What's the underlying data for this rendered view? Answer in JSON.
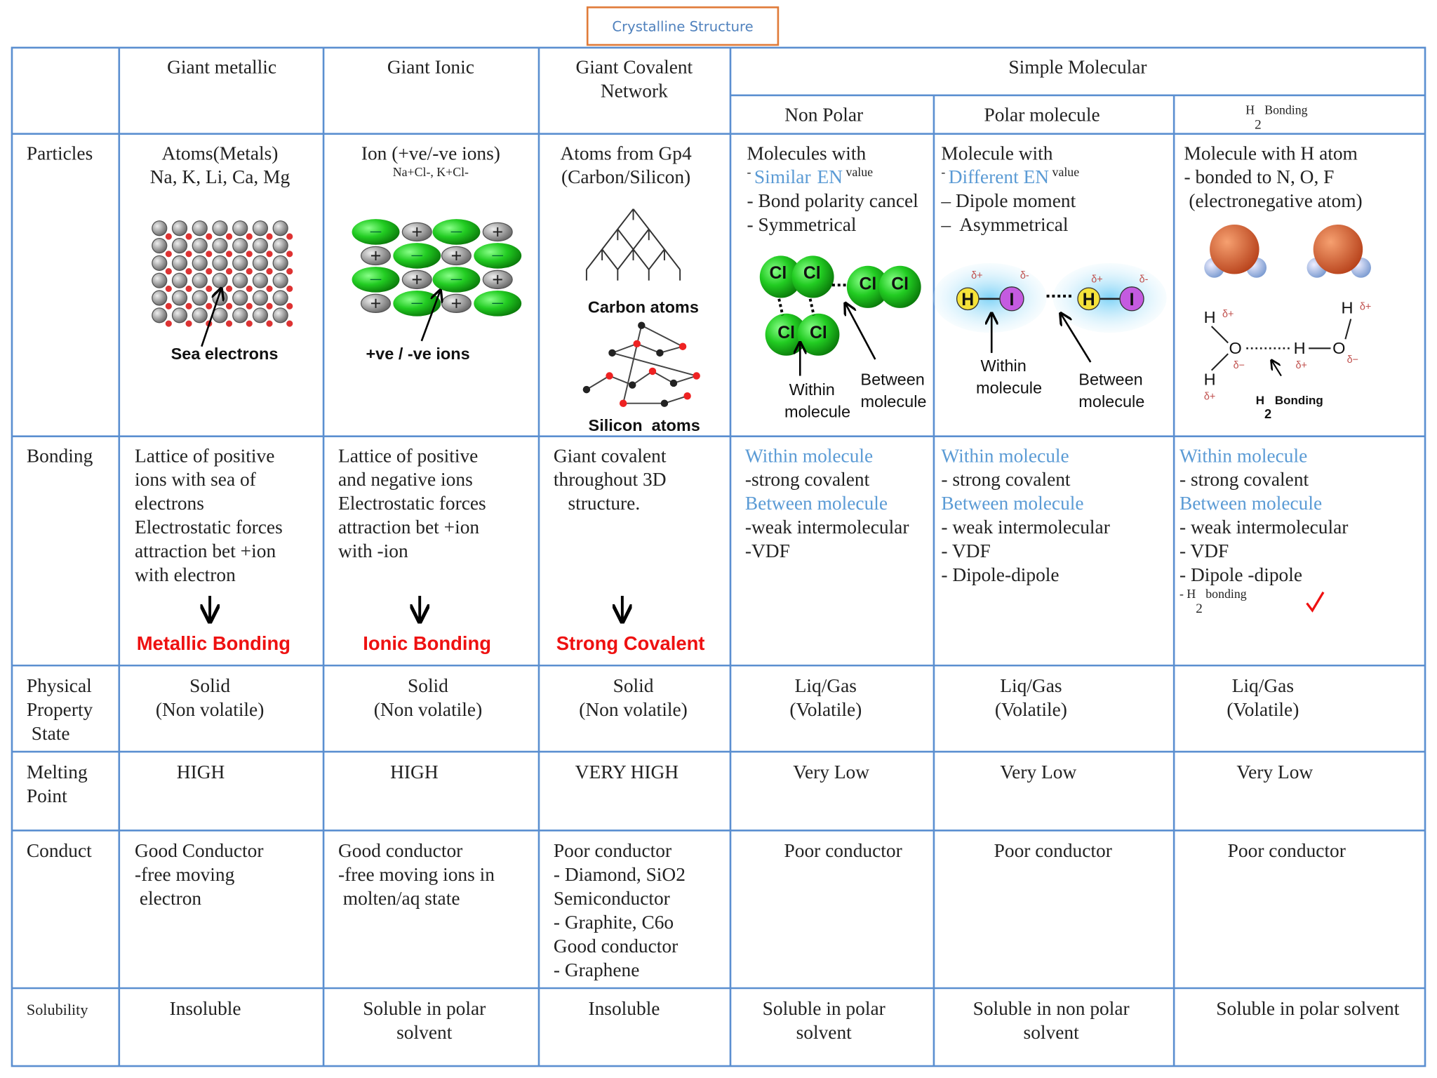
{
  "title": "Crystalline Structure",
  "header": {
    "columns": [
      [
        "Giant metallic"
      ],
      [
        "Giant Ionic"
      ],
      [
        "Giant Covalent",
        "Network"
      ]
    ],
    "group": "Simple Molecular",
    "subcolumns": [
      "Non Polar",
      "Polar molecule",
      [
        "H",
        {
          "text": "2",
          "sub": true
        },
        " Bonding"
      ]
    ]
  },
  "table": {
    "result_color": "#ee1111",
    "rows": [
      {
        "label": [
          "Particles"
        ],
        "cells": [
          {
            "lines": [
              "Atoms(Metals)",
              "Na, K, Li, Ca, Mg"
            ],
            "labels": [
              "Sea electrons"
            ]
          },
          {
            "lines": [
              "Ion (+ve/-ve ions)",
              [
                "Na",
                {
                  "text": "+",
                  "sup": true
                },
                "Cl",
                {
                  "text": "-",
                  "sup": true
                },
                ", K",
                {
                  "text": "+",
                  "sup": true
                },
                "Cl",
                {
                  "text": "-",
                  "sup": true
                }
              ]
            ],
            "labels": [
              "+ve / -ve ions"
            ]
          },
          {
            "lines": [
              "Atoms from Gp4",
              "(Carbon/Silicon)"
            ],
            "labels": [
              "Carbon atoms",
              "Silicon  atoms"
            ]
          },
          {
            "lines": [
              "Molecules with",
              [
                "- ",
                {
                  "text": "Similar",
                  "color": "#5b9bd5"
                },
                "  ",
                {
                  "text": "EN",
                  "color": "#5b9bd5"
                },
                " value"
              ],
              "- Bond polarity cancel",
              "- Symmetrical"
            ],
            "labels": [
              "Cl",
              "Cl",
              "Cl",
              "Cl",
              "Cl",
              "Cl",
              "Within",
              "molecule",
              "Between",
              "molecule"
            ]
          },
          {
            "lines": [
              "Molecule with",
              [
                "- ",
                {
                  "text": "Different EN",
                  "color": "#5b9bd5"
                },
                " value"
              ],
              "– Dipole moment",
              "–  Asymmetrical"
            ],
            "labels": [
              "H",
              "I",
              "H",
              "I",
              "δ+",
              "δ-",
              "δ+",
              "δ-",
              "Within",
              "molecule",
              "Between",
              "molecule"
            ]
          },
          {
            "lines": [
              "Molecule with H atom",
              "- bonded to N, O, F",
              " (electronegative atom)"
            ],
            "labels": [
              "H",
              "δ+",
              "O",
              "δ−",
              "H",
              "δ+",
              "H",
              "δ+",
              "O",
              "δ−",
              "H",
              "δ+",
              [
                "H",
                {
                  "text": "2",
                  "sub": true
                },
                " Bonding"
              ]
            ]
          }
        ]
      },
      {
        "label": [
          "Bonding"
        ],
        "cells": [
          {
            "lines": [
              "Lattice of positive",
              "ions with sea of",
              "electrons",
              "Electrostatic forces",
              "attraction bet +ion",
              "with electron"
            ],
            "result": "Metallic Bonding"
          },
          {
            "lines": [
              "Lattice of positive",
              "and negative ions",
              "Electrostatic forces",
              "attraction bet +ion",
              "with -ion"
            ],
            "result": "Ionic Bonding"
          },
          {
            "lines": [
              "Giant covalent",
              "throughout 3D",
              "   structure."
            ],
            "result": "Strong Covalent"
          },
          {
            "lines": [
              [
                {
                  "text": "Within molecule",
                  "color": "#5b9bd5"
                }
              ],
              "-strong covalent",
              [
                {
                  "text": "Between molecule",
                  "color": "#5b9bd5"
                }
              ],
              "-weak intermolecular",
              "-VDF"
            ]
          },
          {
            "lines": [
              [
                {
                  "text": "Within molecule",
                  "color": "#5b9bd5"
                }
              ],
              "- strong covalent",
              [
                {
                  "text": "Between molecule",
                  "color": "#5b9bd5"
                }
              ],
              "- weak intermolecular",
              "- VDF",
              "- Dipole-dipole"
            ]
          },
          {
            "lines": [
              [
                {
                  "text": "Within molecule",
                  "color": "#5b9bd5"
                }
              ],
              "- strong covalent",
              [
                {
                  "text": "Between molecule",
                  "color": "#5b9bd5"
                }
              ],
              "- weak intermolecular",
              "- VDF",
              "- Dipole -dipole",
              [
                "- H",
                {
                  "text": "2",
                  "sub": true
                },
                " bonding"
              ]
            ]
          }
        ]
      },
      {
        "label": [
          "Physical",
          "Property",
          " State"
        ],
        "cells": [
          {
            "lines": [
              "Solid",
              "(Non volatile)"
            ]
          },
          {
            "lines": [
              "Solid",
              "(Non volatile)"
            ]
          },
          {
            "lines": [
              "Solid",
              "(Non volatile)"
            ]
          },
          {
            "lines": [
              "Liq/Gas",
              "(Volatile)"
            ]
          },
          {
            "lines": [
              "Liq/Gas",
              "(Volatile)"
            ]
          },
          {
            "lines": [
              "Liq/Gas",
              "(Volatile)"
            ]
          }
        ]
      },
      {
        "label": [
          "Melting",
          "Point"
        ],
        "cells": [
          {
            "lines": [
              "HIGH"
            ]
          },
          {
            "lines": [
              "HIGH"
            ]
          },
          {
            "lines": [
              "VERY HIGH"
            ]
          },
          {
            "lines": [
              "Very Low"
            ]
          },
          {
            "lines": [
              "Very Low"
            ]
          },
          {
            "lines": [
              "Very Low"
            ]
          }
        ]
      },
      {
        "label": [
          "Conduct"
        ],
        "cells": [
          {
            "lines": [
              "Good Conductor",
              "-free moving",
              " electron"
            ]
          },
          {
            "lines": [
              "Good conductor",
              "-free moving ions in",
              " molten/aq state"
            ]
          },
          {
            "lines": [
              "Poor conductor",
              "- Diamond, SiO2",
              "Semiconductor",
              "- Graphite, C6o",
              "Good conductor",
              "- Graphene"
            ]
          },
          {
            "lines": [
              "Poor conductor"
            ]
          },
          {
            "lines": [
              "Poor conductor"
            ]
          },
          {
            "lines": [
              "Poor conductor"
            ]
          }
        ]
      },
      {
        "label": [
          "Solubility"
        ],
        "cells": [
          {
            "lines": [
              "Insoluble"
            ]
          },
          {
            "lines": [
              "Soluble in polar",
              "solvent"
            ]
          },
          {
            "lines": [
              "Insoluble"
            ]
          },
          {
            "lines": [
              "Soluble in polar",
              "solvent"
            ]
          },
          {
            "lines": [
              "Soluble in non polar",
              "solvent"
            ]
          },
          {
            "lines": [
              "Soluble in polar solvent"
            ]
          }
        ]
      }
    ]
  }
}
